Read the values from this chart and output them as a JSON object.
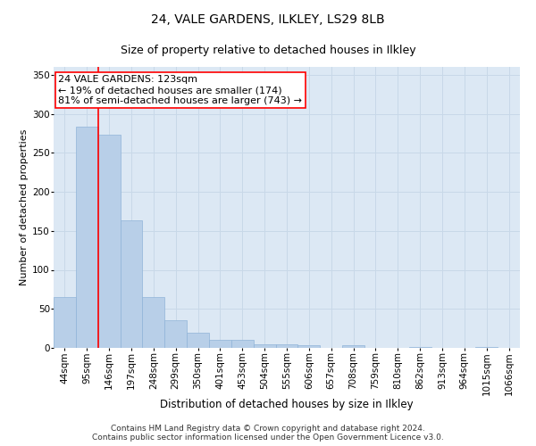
{
  "title1": "24, VALE GARDENS, ILKLEY, LS29 8LB",
  "title2": "Size of property relative to detached houses in Ilkley",
  "xlabel": "Distribution of detached houses by size in Ilkley",
  "ylabel": "Number of detached properties",
  "categories": [
    "44sqm",
    "95sqm",
    "146sqm",
    "197sqm",
    "248sqm",
    "299sqm",
    "350sqm",
    "401sqm",
    "453sqm",
    "504sqm",
    "555sqm",
    "606sqm",
    "657sqm",
    "708sqm",
    "759sqm",
    "810sqm",
    "862sqm",
    "913sqm",
    "964sqm",
    "1015sqm",
    "1066sqm"
  ],
  "values": [
    65,
    283,
    273,
    163,
    65,
    35,
    20,
    10,
    10,
    5,
    5,
    3,
    0,
    3,
    0,
    0,
    1,
    0,
    0,
    1,
    0
  ],
  "bar_color": "#b8cfe8",
  "bar_edge_color": "#90b4d8",
  "vline_x_index": 1.5,
  "vline_color": "red",
  "annotation_text": "24 VALE GARDENS: 123sqm\n← 19% of detached houses are smaller (174)\n81% of semi-detached houses are larger (743) →",
  "annotation_box_color": "white",
  "annotation_box_edge_color": "red",
  "ylim": [
    0,
    360
  ],
  "yticks": [
    0,
    50,
    100,
    150,
    200,
    250,
    300,
    350
  ],
  "grid_color": "#c8d8e8",
  "background_color": "#dce8f4",
  "footer_text": "Contains HM Land Registry data © Crown copyright and database right 2024.\nContains public sector information licensed under the Open Government Licence v3.0.",
  "title1_fontsize": 10,
  "title2_fontsize": 9,
  "xlabel_fontsize": 8.5,
  "ylabel_fontsize": 8,
  "tick_fontsize": 7.5,
  "annotation_fontsize": 8,
  "footer_fontsize": 6.5
}
